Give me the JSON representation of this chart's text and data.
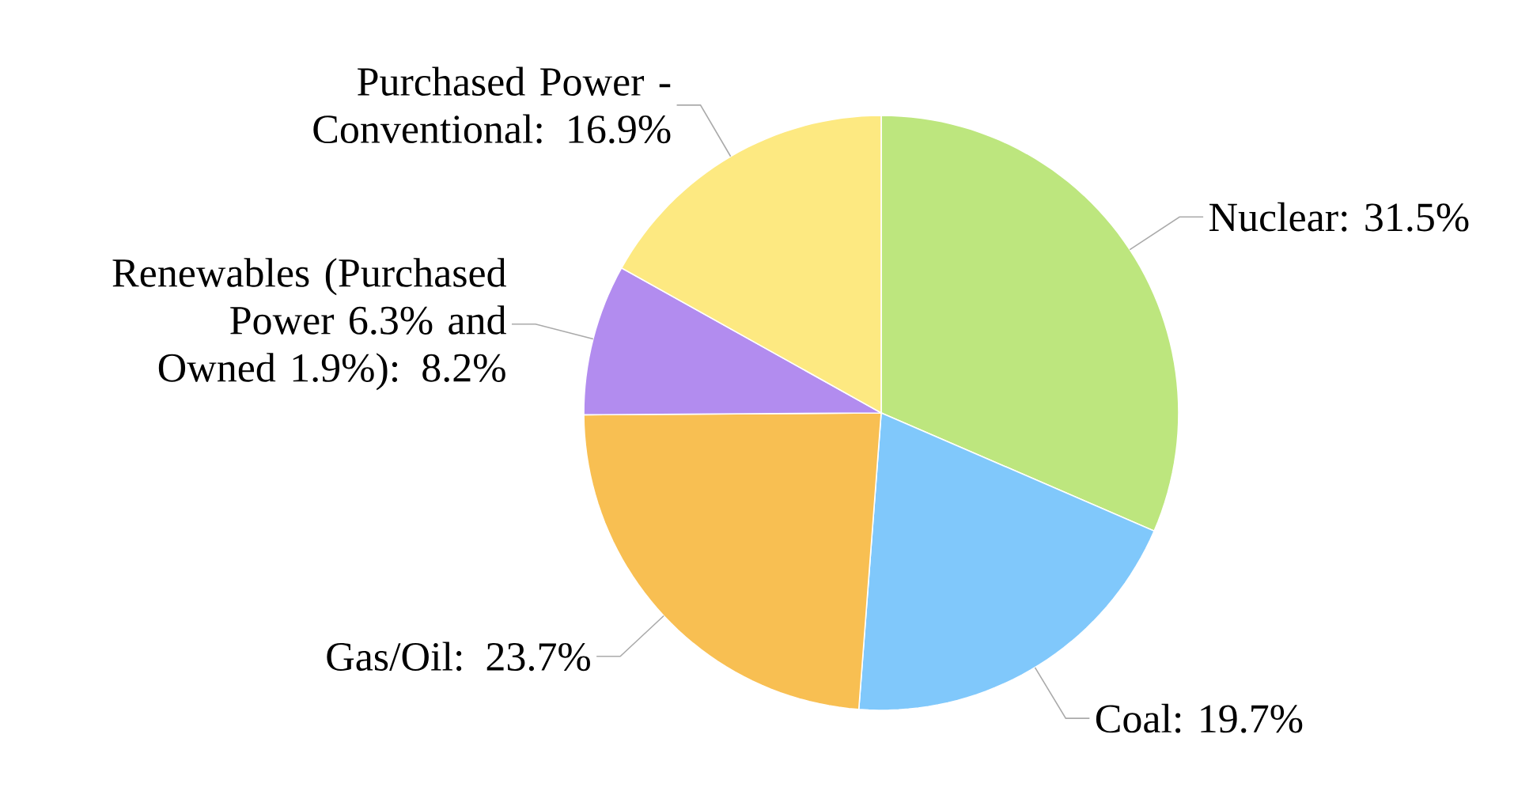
{
  "chart_data": {
    "type": "pie",
    "categories": [
      "Nuclear: 31.5%",
      "Coal: 19.7%",
      "Gas/Oil: 23.7%",
      "Renewables (Purchased Power 6.3% and Owned 1.9%): 8.2%",
      "Purchased Power - Conventional: 16.9%"
    ],
    "values": [
      31.5,
      19.7,
      23.7,
      8.2,
      16.9
    ],
    "colors": [
      "#bde67e",
      "#80c8fb",
      "#f8bf52",
      "#b28cef",
      "#fde981"
    ]
  }
}
